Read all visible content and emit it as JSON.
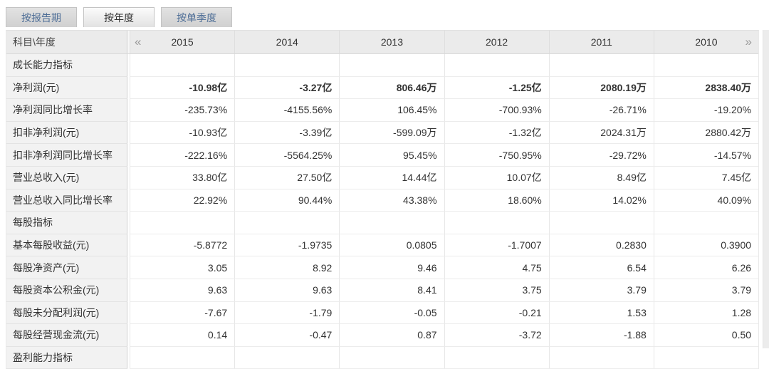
{
  "tabs": [
    {
      "label": "按报告期",
      "active": false
    },
    {
      "label": "按年度",
      "active": true
    },
    {
      "label": "按单季度",
      "active": false
    }
  ],
  "table": {
    "corner_label": "科目\\年度",
    "prev_icon": "«",
    "next_icon": "»",
    "years": [
      "2015",
      "2014",
      "2013",
      "2012",
      "2011",
      "2010"
    ],
    "rows": [
      {
        "type": "section",
        "label": "成长能力指标"
      },
      {
        "type": "data",
        "label": "净利润(元)",
        "bold": true,
        "values": [
          "-10.98亿",
          "-3.27亿",
          "806.46万",
          "-1.25亿",
          "2080.19万",
          "2838.40万"
        ]
      },
      {
        "type": "data",
        "label": "净利润同比增长率",
        "values": [
          "-235.73%",
          "-4155.56%",
          "106.45%",
          "-700.93%",
          "-26.71%",
          "-19.20%"
        ]
      },
      {
        "type": "data",
        "label": "扣非净利润(元)",
        "values": [
          "-10.93亿",
          "-3.39亿",
          "-599.09万",
          "-1.32亿",
          "2024.31万",
          "2880.42万"
        ]
      },
      {
        "type": "data",
        "label": "扣非净利润同比增长率",
        "values": [
          "-222.16%",
          "-5564.25%",
          "95.45%",
          "-750.95%",
          "-29.72%",
          "-14.57%"
        ]
      },
      {
        "type": "data",
        "label": "营业总收入(元)",
        "values": [
          "33.80亿",
          "27.50亿",
          "14.44亿",
          "10.07亿",
          "8.49亿",
          "7.45亿"
        ]
      },
      {
        "type": "data",
        "label": "营业总收入同比增长率",
        "values": [
          "22.92%",
          "90.44%",
          "43.38%",
          "18.60%",
          "14.02%",
          "40.09%"
        ]
      },
      {
        "type": "section",
        "label": "每股指标"
      },
      {
        "type": "data",
        "label": "基本每股收益(元)",
        "values": [
          "-5.8772",
          "-1.9735",
          "0.0805",
          "-1.7007",
          "0.2830",
          "0.3900"
        ]
      },
      {
        "type": "data",
        "label": "每股净资产(元)",
        "values": [
          "3.05",
          "8.92",
          "9.46",
          "4.75",
          "6.54",
          "6.26"
        ]
      },
      {
        "type": "data",
        "label": "每股资本公积金(元)",
        "values": [
          "9.63",
          "9.63",
          "8.41",
          "3.75",
          "3.79",
          "3.79"
        ]
      },
      {
        "type": "data",
        "label": "每股未分配利润(元)",
        "values": [
          "-7.67",
          "-1.79",
          "-0.05",
          "-0.21",
          "1.53",
          "1.28"
        ]
      },
      {
        "type": "data",
        "label": "每股经营现金流(元)",
        "values": [
          "0.14",
          "-0.47",
          "0.87",
          "-3.72",
          "-1.88",
          "0.50"
        ]
      },
      {
        "type": "section",
        "label": "盈利能力指标"
      }
    ]
  },
  "colors": {
    "header_bg": "#ebebeb",
    "label_cell_bg": "#f2f2f2",
    "tab_inactive_text": "#4d6d96",
    "tab_active_text": "#333333",
    "border": "#e7e7e7",
    "text": "#333333"
  }
}
